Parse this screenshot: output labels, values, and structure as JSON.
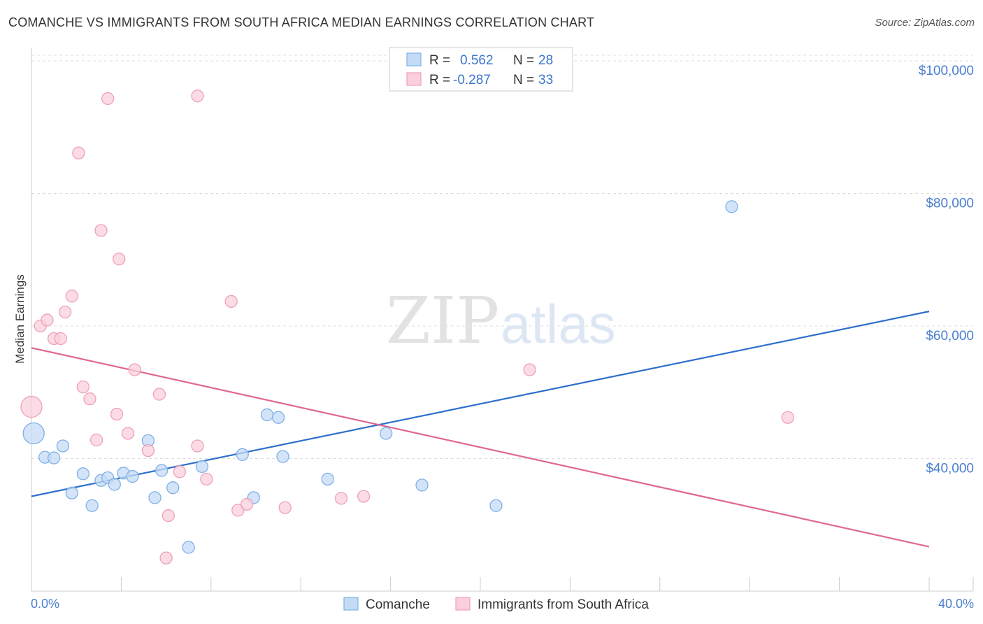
{
  "title": "COMANCHE VS IMMIGRANTS FROM SOUTH AFRICA MEDIAN EARNINGS CORRELATION CHART",
  "source": "Source: ZipAtlas.com",
  "watermark": {
    "zip": "ZIP",
    "atlas": "atlas"
  },
  "chart_data": {
    "type": "scatter",
    "ylabel": "Median Earnings",
    "xlim": [
      0,
      40
    ],
    "ylim": [
      20000,
      102000
    ],
    "x_tick_labels": {
      "min": "0.0%",
      "max": "40.0%"
    },
    "y_ticks": [
      {
        "value": 40000,
        "label": "$40,000"
      },
      {
        "value": 60000,
        "label": "$60,000"
      },
      {
        "value": 80000,
        "label": "$80,000"
      },
      {
        "value": 100000,
        "label": "$100,000"
      }
    ],
    "legend": [
      {
        "r_label": "R =",
        "r": "0.562",
        "n_label": "N =",
        "n": "28"
      },
      {
        "r_label": "R =",
        "r": "-0.287",
        "n_label": "N =",
        "n": "33"
      }
    ],
    "series": [
      {
        "name": "Comanche",
        "color": "#7fb0e8",
        "fill": "#c5dbf5",
        "line_color": "#2e6fcc",
        "trend": {
          "x0": 0,
          "y0": 34300,
          "x1": 40,
          "y1": 62200
        },
        "points": [
          {
            "x": 0.1,
            "y": 43800,
            "big": true
          },
          {
            "x": 0.6,
            "y": 40200
          },
          {
            "x": 1.0,
            "y": 40100
          },
          {
            "x": 1.4,
            "y": 41900
          },
          {
            "x": 1.8,
            "y": 34800
          },
          {
            "x": 2.3,
            "y": 37700
          },
          {
            "x": 2.7,
            "y": 32900
          },
          {
            "x": 3.1,
            "y": 36700
          },
          {
            "x": 3.4,
            "y": 37100
          },
          {
            "x": 3.7,
            "y": 36100
          },
          {
            "x": 4.1,
            "y": 37800
          },
          {
            "x": 4.5,
            "y": 37300
          },
          {
            "x": 5.2,
            "y": 42700
          },
          {
            "x": 5.5,
            "y": 34100
          },
          {
            "x": 5.8,
            "y": 38200
          },
          {
            "x": 6.3,
            "y": 35600
          },
          {
            "x": 7.0,
            "y": 26600
          },
          {
            "x": 7.6,
            "y": 38800
          },
          {
            "x": 9.4,
            "y": 40600
          },
          {
            "x": 9.9,
            "y": 34100
          },
          {
            "x": 10.5,
            "y": 46600
          },
          {
            "x": 11.0,
            "y": 46200
          },
          {
            "x": 11.2,
            "y": 40300
          },
          {
            "x": 13.2,
            "y": 36900
          },
          {
            "x": 15.8,
            "y": 43800
          },
          {
            "x": 17.4,
            "y": 36000
          },
          {
            "x": 20.7,
            "y": 32900
          },
          {
            "x": 31.2,
            "y": 78000
          }
        ]
      },
      {
        "name": "Immigrants from South Africa",
        "color": "#f0a0b8",
        "fill": "#f9d0dc",
        "line_color": "#e06890",
        "trend": {
          "x0": 0,
          "y0": 56700,
          "x1": 40,
          "y1": 26700
        },
        "points": [
          {
            "x": 0.0,
            "y": 47800,
            "big": true
          },
          {
            "x": 0.4,
            "y": 60000
          },
          {
            "x": 0.7,
            "y": 60900
          },
          {
            "x": 1.0,
            "y": 58100
          },
          {
            "x": 1.3,
            "y": 58100
          },
          {
            "x": 1.5,
            "y": 62100
          },
          {
            "x": 1.8,
            "y": 64500
          },
          {
            "x": 2.1,
            "y": 86100
          },
          {
            "x": 2.3,
            "y": 50800
          },
          {
            "x": 2.6,
            "y": 49000
          },
          {
            "x": 2.9,
            "y": 42800
          },
          {
            "x": 3.1,
            "y": 74400
          },
          {
            "x": 3.4,
            "y": 94300
          },
          {
            "x": 3.8,
            "y": 46700
          },
          {
            "x": 3.9,
            "y": 70100
          },
          {
            "x": 4.3,
            "y": 43800
          },
          {
            "x": 4.6,
            "y": 53400
          },
          {
            "x": 5.2,
            "y": 41200
          },
          {
            "x": 5.7,
            "y": 49700
          },
          {
            "x": 6.0,
            "y": 25000
          },
          {
            "x": 6.1,
            "y": 31400
          },
          {
            "x": 6.6,
            "y": 38000
          },
          {
            "x": 7.4,
            "y": 94700
          },
          {
            "x": 7.4,
            "y": 41900
          },
          {
            "x": 7.8,
            "y": 36900
          },
          {
            "x": 8.9,
            "y": 63700
          },
          {
            "x": 9.2,
            "y": 32200
          },
          {
            "x": 9.6,
            "y": 33100
          },
          {
            "x": 11.3,
            "y": 32600
          },
          {
            "x": 13.8,
            "y": 34000
          },
          {
            "x": 14.8,
            "y": 34300
          },
          {
            "x": 22.2,
            "y": 53400
          },
          {
            "x": 33.7,
            "y": 46200
          }
        ]
      }
    ]
  }
}
